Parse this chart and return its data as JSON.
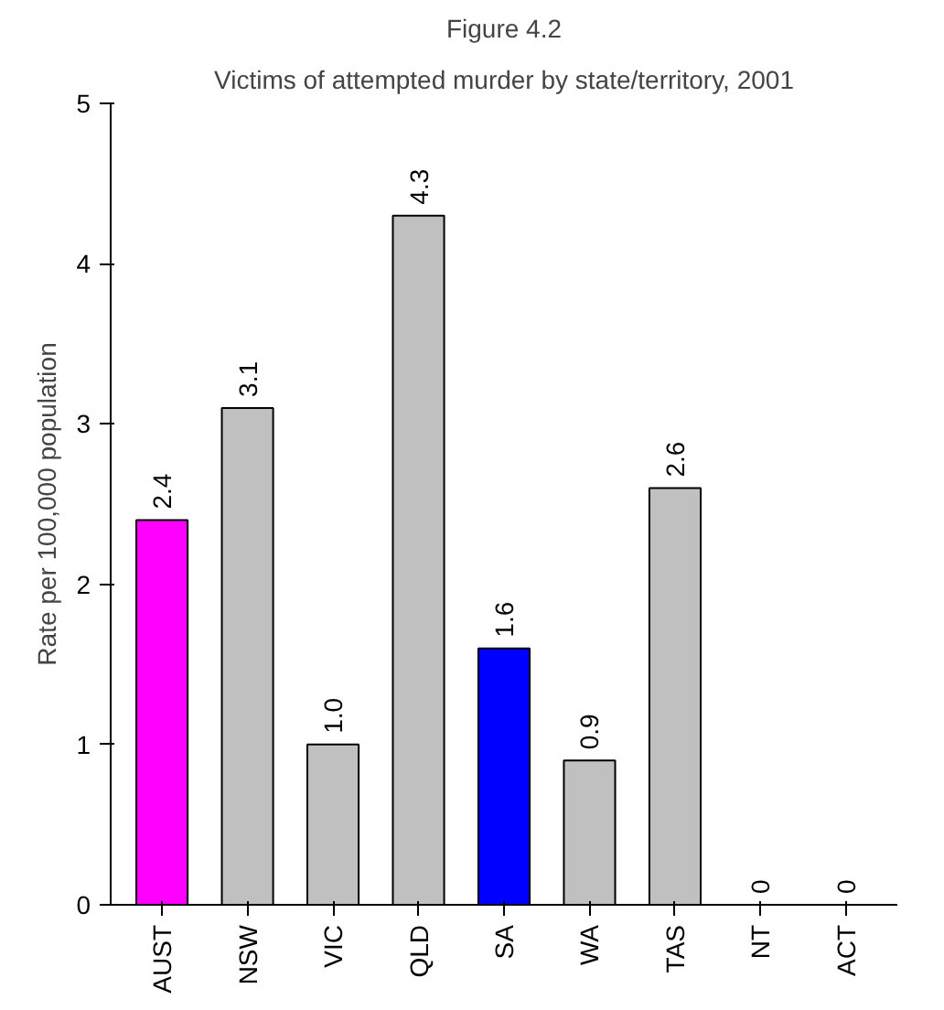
{
  "chart_data": {
    "type": "bar",
    "title": "Figure 4.2",
    "subtitle": "Victims of attempted murder by state/territory, 2001",
    "ylabel": "Rate per 100,000 population",
    "categories": [
      "AUST",
      "NSW",
      "VIC",
      "QLD",
      "SA",
      "WA",
      "TAS",
      "NT",
      "ACT"
    ],
    "values": [
      2.4,
      3.1,
      1.0,
      4.3,
      1.6,
      0.9,
      2.6,
      0,
      0
    ],
    "value_labels": [
      "2.4",
      "3.1",
      "1.0",
      "4.3",
      "1.6",
      "0.9",
      "2.6",
      "0",
      "0"
    ],
    "colors": [
      "#ff00ff",
      "#c0c0c0",
      "#c0c0c0",
      "#c0c0c0",
      "#0000ff",
      "#c0c0c0",
      "#c0c0c0",
      "#c0c0c0",
      "#c0c0c0"
    ],
    "ylim": [
      0,
      5
    ],
    "yticks": [
      0,
      1,
      2,
      3,
      4,
      5
    ],
    "grid": false
  }
}
